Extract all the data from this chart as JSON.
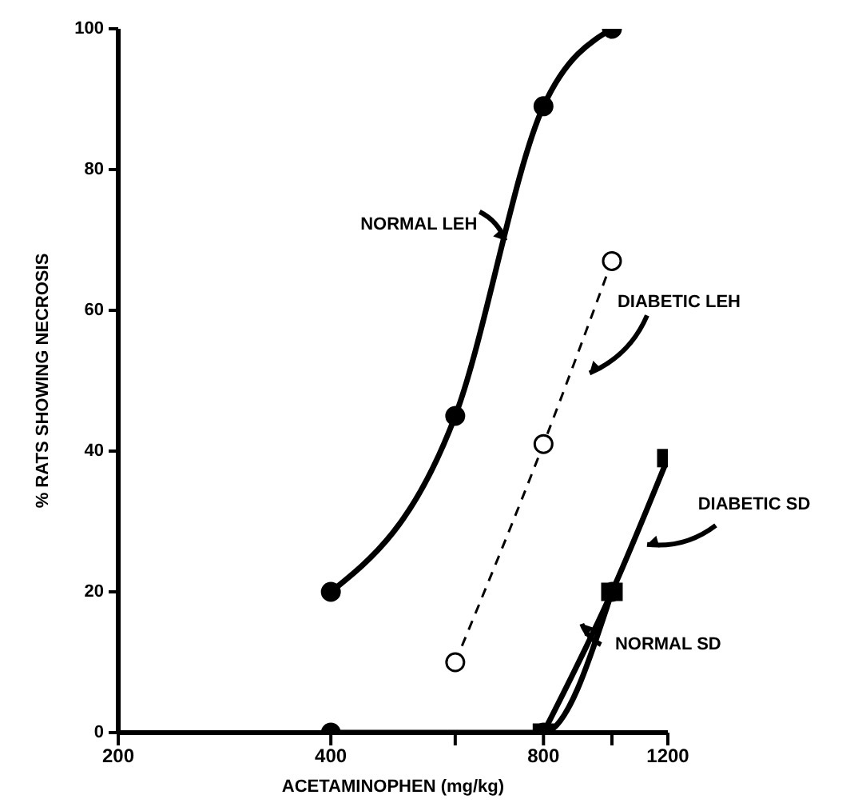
{
  "chart_data": {
    "type": "line",
    "xlabel": "ACETAMINOPHEN (mg/kg)",
    "ylabel": "% RATS SHOWING NECROSIS",
    "log": "x",
    "xlim": [
      200,
      1200
    ],
    "xticks": [
      200,
      400,
      {
        "value": 600,
        "label": null
      },
      800,
      {
        "value": 1000,
        "label": null
      },
      1200
    ],
    "ylim": [
      0,
      100
    ],
    "yticks": [
      0,
      20,
      40,
      60,
      80,
      100
    ],
    "series": [
      {
        "name": "NORMAL LEH",
        "color": "#000000",
        "x": [
          400,
          600,
          800,
          1000
        ],
        "values": [
          20,
          45,
          89,
          100
        ],
        "marker": "circle",
        "line_style": "solid"
      },
      {
        "name": "DIABETIC LEH",
        "color": "#000000",
        "x": [
          600,
          800,
          1000
        ],
        "values": [
          10,
          41,
          67
        ],
        "marker": "circle",
        "line_style": "dashed"
      },
      {
        "name": "NORMAL SD",
        "color": "#000000",
        "x": [
          400,
          800,
          1000
        ],
        "values": [
          0,
          0,
          20
        ],
        "marker": "circle",
        "line_style": "solid"
      },
      {
        "name": "DIABETIC SD",
        "color": "#000000",
        "x": [
          800,
          1000,
          1200
        ],
        "values": [
          0,
          20,
          39
        ],
        "marker": "square",
        "line_style": "solid"
      }
    ]
  }
}
